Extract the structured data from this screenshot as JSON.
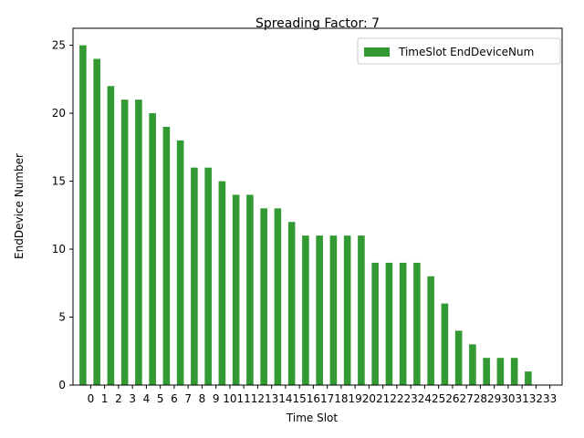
{
  "chart_data": {
    "type": "bar",
    "title": "Spreading Factor: 7",
    "xlabel": "Time Slot",
    "ylabel": "EndDevice Number",
    "categories": [
      "0",
      "1",
      "2",
      "3",
      "4",
      "5",
      "6",
      "7",
      "8",
      "9",
      "10",
      "11",
      "12",
      "13",
      "14",
      "15",
      "16",
      "17",
      "18",
      "19",
      "20",
      "21",
      "22",
      "23",
      "24",
      "25",
      "26",
      "27",
      "28",
      "29",
      "30",
      "31",
      "32",
      "33"
    ],
    "series": [
      {
        "name": "TimeSlot EndDeviceNum",
        "values": [
          25,
          24,
          22,
          21,
          21,
          20,
          19,
          18,
          16,
          16,
          15,
          14,
          14,
          13,
          13,
          12,
          11,
          11,
          11,
          11,
          11,
          9,
          9,
          9,
          9,
          8,
          6,
          4,
          3,
          2,
          2,
          2,
          1,
          0
        ]
      }
    ],
    "ylim": [
      0,
      26.25
    ],
    "yticks": [
      0,
      5,
      10,
      15,
      20,
      25
    ],
    "legend_position": "top-right",
    "grid": false,
    "bar_color": "#339933"
  }
}
